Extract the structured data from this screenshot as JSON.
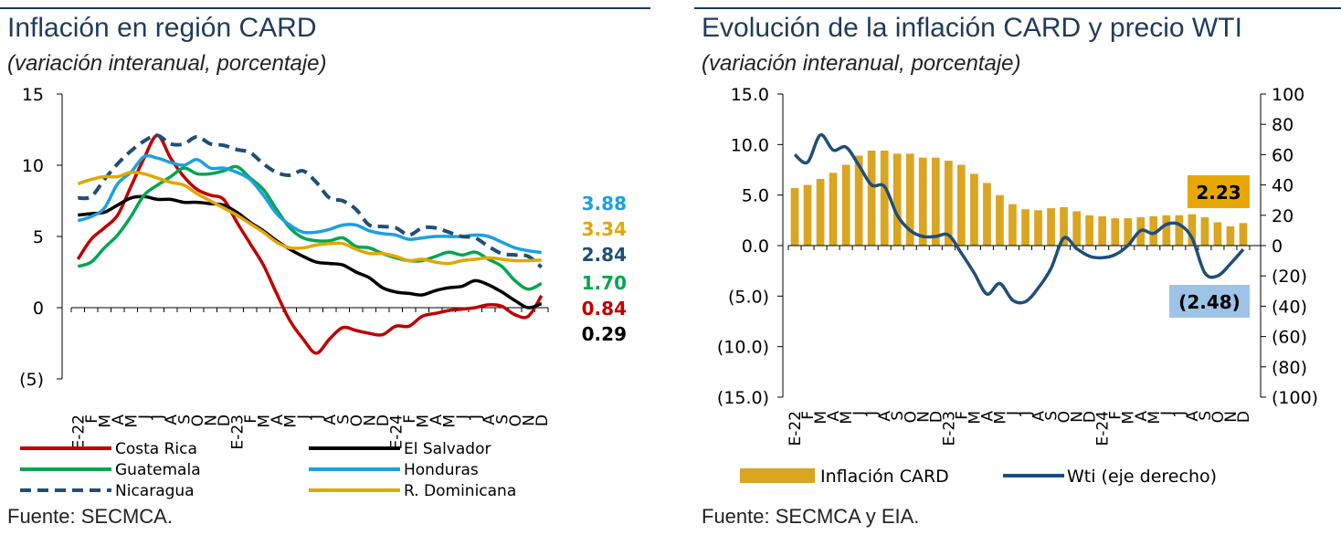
{
  "left": {
    "title": "Inflación en región CARD",
    "subtitle": "(variación interanual, porcentaje)",
    "source": "Fuente: SECMCA."
  },
  "right": {
    "title": "Evolución de la inflación CARD y precio WTI",
    "subtitle": "(variación interanual, porcentaje)",
    "source": "Fuente: SECMCA y EIA."
  },
  "chart_data": [
    {
      "type": "line",
      "title": "Inflación en región CARD",
      "subtitle": "(variación interanual, porcentaje)",
      "ylim": [
        -5,
        15
      ],
      "y_ticks": [
        "(5)",
        "0",
        "5",
        "10",
        "15"
      ],
      "x_tick_labels": [
        "E-22",
        "F",
        "M",
        "A",
        "M",
        "J",
        "J",
        "A",
        "S",
        "O",
        "N",
        "D",
        "E-23",
        "F",
        "M",
        "A",
        "M",
        "J",
        "J",
        "A",
        "S",
        "O",
        "N",
        "D",
        "E-24",
        "F",
        "M",
        "A",
        "M",
        "J",
        "J",
        "A",
        "S",
        "O",
        "N",
        "D"
      ],
      "grid": false,
      "legend_position": "bottom",
      "series": [
        {
          "name": "Costa Rica",
          "color": "#c00000",
          "dash": false,
          "values": [
            3.4,
            4.8,
            5.6,
            6.5,
            8.5,
            10.5,
            12.1,
            10.5,
            9.2,
            8.3,
            7.9,
            7.6,
            6.0,
            4.5,
            3.0,
            1.0,
            -0.9,
            -2.2,
            -3.2,
            -2.2,
            -1.4,
            -1.6,
            -1.8,
            -1.9,
            -1.3,
            -1.3,
            -0.6,
            -0.4,
            -0.2,
            -0.1,
            0.0,
            0.2,
            0.1,
            -0.5,
            -0.6,
            0.84
          ],
          "end_label": "0.84"
        },
        {
          "name": "El Salvador",
          "color": "#000000",
          "dash": false,
          "values": [
            6.5,
            6.6,
            6.7,
            7.2,
            7.7,
            7.8,
            7.6,
            7.6,
            7.4,
            7.4,
            7.3,
            7.2,
            6.7,
            6.0,
            5.4,
            4.7,
            4.1,
            3.6,
            3.2,
            3.1,
            3.0,
            2.5,
            2.1,
            1.4,
            1.1,
            1.0,
            0.9,
            1.2,
            1.4,
            1.5,
            1.9,
            1.6,
            1.1,
            0.5,
            0.0,
            0.29
          ],
          "end_label": "0.29"
        },
        {
          "name": "Guatemala",
          "color": "#00a651",
          "dash": false,
          "values": [
            2.9,
            3.2,
            4.2,
            5.1,
            6.4,
            7.9,
            8.6,
            9.2,
            9.8,
            9.4,
            9.4,
            9.6,
            9.9,
            9.1,
            8.3,
            6.9,
            5.6,
            4.9,
            4.7,
            4.7,
            4.9,
            4.3,
            4.2,
            3.8,
            3.5,
            3.3,
            3.3,
            3.6,
            3.9,
            3.7,
            3.9,
            3.4,
            2.9,
            1.9,
            1.3,
            1.7
          ],
          "end_label": "1.70"
        },
        {
          "name": "Honduras",
          "color": "#1ca0e0",
          "dash": false,
          "values": [
            6.1,
            6.4,
            7.0,
            8.7,
            9.5,
            10.6,
            10.5,
            10.2,
            10.0,
            10.4,
            9.8,
            9.8,
            9.5,
            9.0,
            7.9,
            6.6,
            5.8,
            5.3,
            5.3,
            5.5,
            5.8,
            5.8,
            5.4,
            5.2,
            5.1,
            4.8,
            4.9,
            5.0,
            5.0,
            5.0,
            5.1,
            5.0,
            4.6,
            4.2,
            4.0,
            3.88
          ],
          "end_label": "3.88"
        },
        {
          "name": "Nicaragua",
          "color": "#1f4e79",
          "dash": true,
          "values": [
            7.7,
            7.8,
            9.0,
            10.1,
            11.0,
            11.7,
            12.1,
            11.5,
            11.5,
            12.0,
            11.5,
            11.4,
            11.1,
            10.9,
            10.1,
            9.5,
            9.3,
            9.6,
            8.8,
            7.7,
            7.5,
            6.9,
            5.8,
            5.7,
            5.6,
            5.1,
            5.6,
            5.6,
            5.3,
            5.0,
            4.9,
            4.3,
            3.8,
            3.7,
            3.6,
            2.84
          ],
          "end_label": "2.84"
        },
        {
          "name": "R. Dominicana",
          "color": "#e0a800",
          "dash": false,
          "values": [
            8.7,
            9.0,
            9.2,
            9.2,
            9.5,
            9.4,
            9.1,
            8.8,
            8.6,
            8.0,
            7.5,
            7.0,
            6.5,
            5.9,
            5.3,
            4.6,
            4.2,
            4.2,
            4.4,
            4.5,
            4.5,
            4.1,
            3.8,
            3.8,
            3.6,
            3.3,
            3.4,
            3.2,
            3.1,
            3.3,
            3.4,
            3.5,
            3.4,
            3.3,
            3.3,
            3.34
          ],
          "end_label": "3.34"
        }
      ]
    },
    {
      "type": "bar+line",
      "title": "Evolución de la inflación CARD y precio WTI",
      "subtitle": "(variación interanual, porcentaje)",
      "ylim_left": [
        -15,
        15
      ],
      "ylim_right": [
        -100,
        100
      ],
      "y_ticks_left": [
        "(15.0)",
        "(10.0)",
        "(5.0)",
        "0.0",
        "5.0",
        "10.0",
        "15.0"
      ],
      "y_ticks_right": [
        "(100)",
        "(80)",
        "(60)",
        "(40)",
        "(20)",
        "0",
        "20",
        "40",
        "60",
        "80",
        "100"
      ],
      "x_tick_labels": [
        "E-22",
        "F",
        "M",
        "A",
        "M",
        "J",
        "J",
        "A",
        "S",
        "O",
        "N",
        "D",
        "E-23",
        "F",
        "M",
        "A",
        "M",
        "J",
        "J",
        "A",
        "S",
        "O",
        "N",
        "D",
        "E-24",
        "F",
        "M",
        "A",
        "M",
        "J",
        "J",
        "A",
        "S",
        "O",
        "N",
        "D"
      ],
      "grid": false,
      "legend_position": "bottom",
      "series": [
        {
          "name": "Inflación CARD",
          "kind": "bar",
          "axis": "left",
          "color": "#daa520",
          "values": [
            5.7,
            6.0,
            6.6,
            7.2,
            8.0,
            8.9,
            9.4,
            9.4,
            9.1,
            9.1,
            8.7,
            8.7,
            8.4,
            8.0,
            7.1,
            6.2,
            5.0,
            4.1,
            3.6,
            3.5,
            3.7,
            3.8,
            3.4,
            3.0,
            2.9,
            2.7,
            2.7,
            2.8,
            2.9,
            3.0,
            3.0,
            3.1,
            2.8,
            2.3,
            1.9,
            2.23
          ],
          "end_label": "2.23"
        },
        {
          "name": "Wti (eje derecho)",
          "kind": "line",
          "axis": "right",
          "color": "#1f4e79",
          "values": [
            60,
            55,
            73,
            63,
            65,
            53,
            40,
            39,
            20,
            10,
            6,
            6,
            7,
            -5,
            -18,
            -32,
            -25,
            -36,
            -37,
            -28,
            -15,
            5,
            -2,
            -7,
            -8,
            -6,
            0,
            10,
            8,
            14,
            14,
            5,
            -18,
            -20,
            -12,
            -2.48
          ],
          "end_label": "(2.48)"
        }
      ]
    }
  ]
}
